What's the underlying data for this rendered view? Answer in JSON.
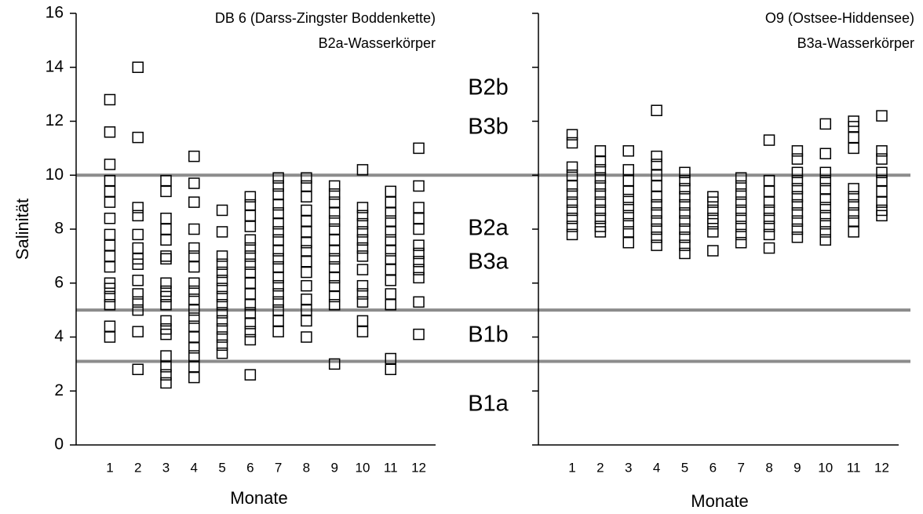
{
  "chart_data": [
    {
      "type": "scatter",
      "title": "DB 6 (Darss-Zingster Boddenkette)",
      "subtitle": "B2a-Wasserkörper",
      "y_label": "Salinität",
      "x_label": "Monate",
      "xlim": [
        -0.2,
        12.6
      ],
      "xticks": [
        1,
        2,
        3,
        4,
        5,
        6,
        7,
        8,
        9,
        10,
        11,
        12
      ],
      "ylim": [
        0,
        16
      ],
      "yticks": [
        0,
        2,
        4,
        6,
        8,
        10,
        12,
        14,
        16
      ],
      "ytick_labels": true,
      "color": "#000000",
      "x": [
        1,
        1,
        1,
        1,
        1,
        1,
        1,
        1,
        1,
        1,
        1,
        1,
        1,
        1,
        1,
        1,
        1,
        2,
        2,
        2,
        2,
        2,
        2,
        2,
        2,
        2,
        2,
        2,
        2,
        2,
        2,
        3,
        3,
        3,
        3,
        3,
        3,
        3,
        3,
        3,
        3,
        3,
        3,
        3,
        3,
        3,
        3,
        3,
        3,
        4,
        4,
        4,
        4,
        4,
        4,
        4,
        4,
        4,
        4,
        4,
        4,
        4,
        4,
        4,
        4,
        4,
        4,
        5,
        5,
        5,
        5,
        5,
        5,
        5,
        5,
        5,
        5,
        5,
        5,
        5,
        5,
        5,
        6,
        6,
        6,
        6,
        6,
        6,
        6,
        6,
        6,
        6,
        6,
        6,
        6,
        6,
        6,
        6,
        6,
        7,
        7,
        7,
        7,
        7,
        7,
        7,
        7,
        7,
        7,
        7,
        7,
        7,
        7,
        7,
        7,
        7,
        7,
        8,
        8,
        8,
        8,
        8,
        8,
        8,
        8,
        8,
        8,
        8,
        8,
        8,
        8,
        8,
        9,
        9,
        9,
        9,
        9,
        9,
        9,
        9,
        9,
        9,
        9,
        9,
        9,
        9,
        9,
        10,
        10,
        10,
        10,
        10,
        10,
        10,
        10,
        10,
        10,
        10,
        10,
        10,
        10,
        11,
        11,
        11,
        11,
        11,
        11,
        11,
        11,
        11,
        11,
        11,
        11,
        11,
        11,
        12,
        12,
        12,
        12,
        12,
        12,
        12,
        12,
        12,
        12,
        12,
        12
      ],
      "values": [
        12.8,
        11.6,
        10.4,
        9.8,
        9.4,
        9.0,
        8.4,
        7.8,
        7.4,
        7.0,
        6.6,
        6.0,
        5.8,
        5.5,
        5.2,
        4.4,
        4.0,
        14.0,
        11.4,
        8.8,
        8.5,
        7.8,
        7.3,
        6.9,
        6.7,
        6.1,
        5.6,
        5.3,
        5.0,
        4.2,
        2.8,
        9.8,
        9.4,
        8.4,
        8.0,
        7.6,
        7.0,
        6.9,
        6.0,
        5.7,
        5.5,
        5.2,
        4.6,
        4.3,
        4.1,
        3.3,
        2.9,
        2.6,
        2.3,
        10.7,
        9.7,
        9.0,
        8.0,
        7.3,
        7.0,
        6.6,
        6.0,
        5.7,
        5.4,
        5.0,
        4.7,
        4.4,
        4.0,
        3.6,
        3.3,
        2.9,
        2.5,
        8.7,
        7.9,
        7.0,
        6.7,
        6.4,
        6.1,
        5.8,
        5.5,
        5.2,
        4.9,
        4.6,
        4.3,
        4.0,
        3.7,
        3.4,
        9.2,
        8.9,
        8.5,
        8.1,
        7.6,
        7.3,
        7.0,
        6.7,
        6.4,
        6.0,
        5.6,
        5.2,
        4.9,
        4.5,
        4.2,
        3.9,
        2.6,
        9.9,
        9.6,
        9.3,
        8.9,
        8.6,
        8.2,
        7.9,
        7.6,
        7.2,
        6.9,
        6.6,
        6.2,
        5.9,
        5.6,
        5.3,
        5.0,
        4.6,
        4.2,
        9.9,
        9.6,
        9.2,
        8.7,
        8.3,
        7.9,
        7.5,
        7.2,
        6.8,
        6.4,
        5.9,
        5.4,
        5.0,
        4.6,
        4.0,
        9.6,
        9.3,
        9.0,
        8.6,
        8.3,
        8.0,
        7.6,
        7.2,
        6.9,
        6.6,
        6.2,
        5.9,
        5.5,
        5.2,
        3.0,
        10.2,
        8.8,
        8.5,
        8.2,
        7.9,
        7.6,
        7.3,
        7.0,
        6.5,
        5.9,
        5.6,
        5.3,
        4.6,
        4.2,
        9.4,
        9.0,
        8.6,
        8.3,
        7.9,
        7.6,
        7.2,
        6.9,
        6.5,
        6.1,
        5.6,
        5.2,
        3.2,
        2.8,
        11.0,
        9.6,
        8.8,
        8.4,
        8.0,
        7.4,
        7.1,
        6.8,
        6.5,
        6.2,
        5.3,
        4.1
      ]
    },
    {
      "type": "scatter",
      "title": "O9 (Ostsee-Hiddensee)",
      "subtitle": "B3a-Wasserkörper",
      "x_label": "Monate",
      "xlim": [
        -0.2,
        12.6
      ],
      "xticks": [
        1,
        2,
        3,
        4,
        5,
        6,
        7,
        8,
        9,
        10,
        11,
        12
      ],
      "ylim": [
        0,
        16
      ],
      "yticks": [
        0,
        2,
        4,
        6,
        8,
        10,
        12,
        14,
        16
      ],
      "ytick_labels": false,
      "color": "#000000",
      "x": [
        1,
        1,
        1,
        1,
        1,
        1,
        1,
        1,
        1,
        1,
        1,
        2,
        2,
        2,
        2,
        2,
        2,
        2,
        2,
        2,
        2,
        2,
        3,
        3,
        3,
        3,
        3,
        3,
        3,
        3,
        3,
        3,
        4,
        4,
        4,
        4,
        4,
        4,
        4,
        4,
        4,
        4,
        4,
        4,
        5,
        5,
        5,
        5,
        5,
        5,
        5,
        5,
        5,
        5,
        5,
        6,
        6,
        6,
        6,
        6,
        6,
        6,
        7,
        7,
        7,
        7,
        7,
        7,
        7,
        7,
        7,
        8,
        8,
        8,
        8,
        8,
        8,
        8,
        8,
        8,
        9,
        9,
        9,
        9,
        9,
        9,
        9,
        9,
        9,
        9,
        9,
        10,
        10,
        10,
        10,
        10,
        10,
        10,
        10,
        10,
        10,
        10,
        11,
        11,
        11,
        11,
        11,
        11,
        11,
        11,
        11,
        11,
        12,
        12,
        12,
        12,
        12,
        12,
        12,
        12,
        12
      ],
      "values": [
        11.5,
        11.2,
        10.3,
        10.0,
        9.6,
        9.3,
        9.0,
        8.7,
        8.4,
        8.1,
        7.8,
        10.9,
        10.5,
        10.2,
        9.9,
        9.6,
        9.3,
        9.0,
        8.7,
        8.4,
        8.1,
        7.9,
        10.9,
        10.2,
        9.8,
        9.4,
        9.1,
        8.8,
        8.5,
        8.2,
        7.9,
        7.5,
        12.4,
        10.7,
        10.4,
        10.0,
        9.6,
        9.2,
        8.9,
        8.6,
        8.3,
        8.0,
        7.7,
        7.4,
        10.1,
        9.8,
        9.5,
        9.2,
        8.9,
        8.6,
        8.3,
        8.0,
        7.7,
        7.4,
        7.1,
        9.2,
        9.0,
        8.7,
        8.4,
        8.2,
        7.9,
        7.2,
        9.9,
        9.6,
        9.3,
        9.0,
        8.7,
        8.4,
        8.1,
        7.8,
        7.5,
        11.3,
        9.8,
        9.4,
        9.0,
        8.7,
        8.4,
        8.1,
        7.8,
        7.3,
        10.9,
        10.6,
        10.1,
        9.8,
        9.5,
        9.2,
        8.9,
        8.6,
        8.3,
        8.0,
        7.7,
        11.9,
        10.8,
        10.1,
        9.8,
        9.5,
        9.1,
        8.8,
        8.5,
        8.2,
        7.9,
        7.6,
        12.0,
        11.8,
        11.4,
        11.0,
        9.5,
        9.2,
        8.9,
        8.6,
        8.3,
        7.9,
        12.2,
        10.9,
        10.6,
        10.1,
        9.8,
        9.4,
        9.0,
        8.7,
        8.5
      ]
    }
  ],
  "thresholds": {
    "values": [
      10,
      5,
      3.1
    ],
    "color": "#8c8c8c"
  },
  "zones": [
    "B2b",
    "B3b",
    "B2a",
    "B3a",
    "B1b",
    "B1a"
  ]
}
